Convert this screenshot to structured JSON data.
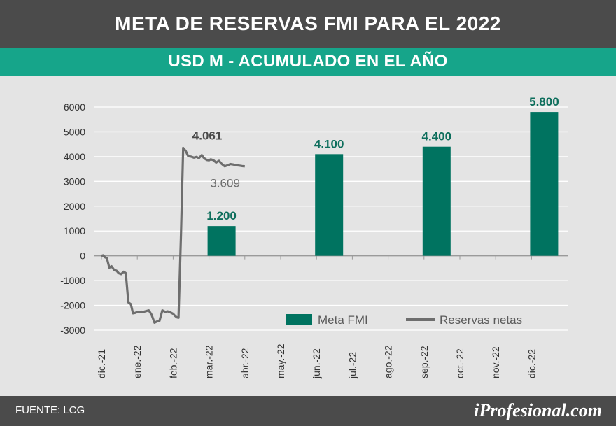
{
  "header": {
    "title": "META DE RESERVAS FMI PARA EL 2022"
  },
  "subheader": {
    "title": "USD M - ACUMULADO EN EL AÑO"
  },
  "footer": {
    "source": "FUENTE: LCG",
    "logo": "iProfesional.com"
  },
  "colors": {
    "header_bg": "#4b4b4b",
    "subheader_bg": "#16a58a",
    "bar": "#007360",
    "line": "#6e6e6e",
    "bar_label": "#0d6e5c",
    "grid": "#ffffff"
  },
  "chart_data": {
    "type": "bar",
    "ylim": [
      -3000,
      6000
    ],
    "y_ticks": [
      6000,
      5000,
      4000,
      3000,
      2000,
      1000,
      0,
      -1000,
      -2000,
      -3000
    ],
    "x_ticks": [
      "dic.-21",
      "ene.-22",
      "feb.-22",
      "mar.-22",
      "abr.-22",
      "may.-22",
      "jun.-22",
      "jul.-22",
      "ago.-22",
      "sep.-22",
      "oct.-22",
      "nov.-22",
      "dic.-22"
    ],
    "grid": true,
    "legend_position": "bottom-right",
    "series": [
      {
        "name": "Meta FMI",
        "type": "bar",
        "points": [
          {
            "x": "mar.-22",
            "y": 1200,
            "label": "1.200"
          },
          {
            "x": "jun.-22",
            "y": 4100,
            "label": "4.100"
          },
          {
            "x": "sep.-22",
            "y": 4400,
            "label": "4.400"
          },
          {
            "x": "dic.-22",
            "y": 5800,
            "label": "5.800"
          }
        ]
      },
      {
        "name": "Reservas netas",
        "type": "line",
        "x": [
          0,
          0.05,
          0.1,
          0.15,
          0.22,
          0.28,
          0.35,
          0.42,
          0.48,
          0.55,
          0.62,
          0.68,
          0.75,
          0.82,
          0.88,
          0.95,
          1.0,
          1.05,
          1.1,
          1.17,
          1.25,
          1.32,
          1.4,
          1.48,
          1.55,
          1.62,
          1.7,
          1.78,
          1.85,
          1.92,
          2.0,
          2.05,
          2.1,
          2.15,
          2.22,
          2.28,
          2.35,
          2.42,
          2.5,
          2.58,
          2.65,
          2.72,
          2.8,
          2.85,
          2.9,
          2.95,
          3.0,
          3.05,
          3.12,
          3.2,
          3.28,
          3.36,
          3.44,
          3.52,
          3.6,
          3.68,
          3.76,
          3.84,
          3.92,
          4.0
        ],
        "y": [
          0,
          20,
          -60,
          -90,
          -480,
          -420,
          -560,
          -600,
          -700,
          -740,
          -640,
          -700,
          -1880,
          -1950,
          -2320,
          -2300,
          -2260,
          -2280,
          -2250,
          -2260,
          -2230,
          -2200,
          -2380,
          -2700,
          -2650,
          -2620,
          -2200,
          -2260,
          -2240,
          -2280,
          -2340,
          -2420,
          -2480,
          -2500,
          900,
          4350,
          4230,
          4020,
          4000,
          3960,
          3990,
          3940,
          4061,
          3960,
          3900,
          3860,
          3850,
          3890,
          3860,
          3760,
          3830,
          3700,
          3609,
          3650,
          3700,
          3680,
          3650,
          3640,
          3620,
          3609
        ],
        "annotations": [
          {
            "label": "4.061",
            "x": 2.95,
            "y": 4061
          },
          {
            "label": "3.609",
            "x": 3.45,
            "y": 3609
          }
        ]
      }
    ]
  }
}
